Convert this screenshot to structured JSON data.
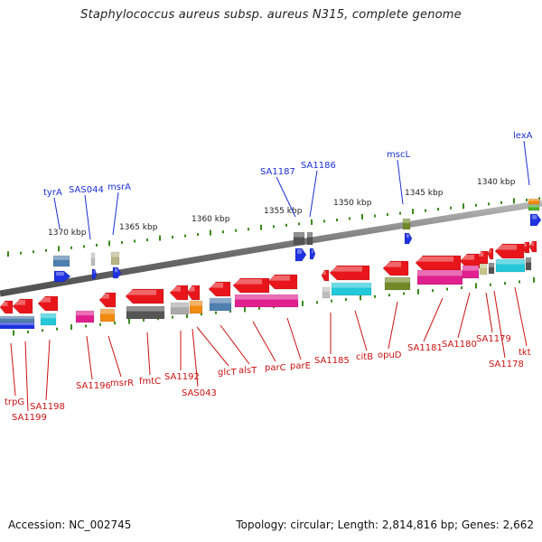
{
  "title": "Staphylococcus aureus subsp. aureus N315, complete genome",
  "footer": {
    "accession": "Accession: NC_002745",
    "topology": "Topology: circular; Length: 2,814,816 bp; Genes: 2,662"
  },
  "colors": {
    "backbone": "#7a7a7a",
    "tick": "#3a8a1a",
    "top_label": "#1a2fd6",
    "bottom_label": "#cc1111",
    "gene_red": "#e8161b",
    "magenta": "#e0208f",
    "cyan": "#22c8d8",
    "blue": "#1f32e0",
    "steel": "#4f7fae",
    "orange": "#f08a10",
    "gray": "#8a8a8a",
    "olive": "#708a28"
  },
  "scale_labels": [
    "1370 kbp",
    "1365 kbp",
    "1360 kbp",
    "1355 kbp",
    "1350 kbp",
    "1345 kbp",
    "1340 kbp"
  ],
  "top_genes": [
    "tyrA",
    "SAS044",
    "msrA",
    "SA1187",
    "SA1186",
    "mscL",
    "lexA"
  ],
  "bottom_genes": [
    "trpG",
    "SA1199",
    "SA1198",
    "SA1196",
    "msrR",
    "fmtC",
    "SA1192",
    "SAS043",
    "glcT",
    "alsT",
    "parC",
    "parE",
    "SA1185",
    "citB",
    "opuD",
    "SA1181",
    "SA1180",
    "SA1179",
    "SA1178",
    "tkt"
  ]
}
